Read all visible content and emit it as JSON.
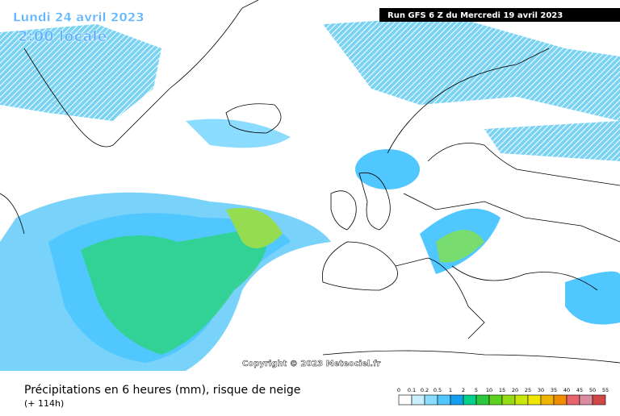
{
  "header": {
    "date": "Lundi 24 avril 2023",
    "time": "2:00 locale",
    "run": "Run GFS 6 Z du Mercredi 19 avril 2023"
  },
  "copyright": "Copyright © 2023 Meteociel.fr",
  "footer": {
    "title": "Précipitations en 6 heures (mm), risque de neige",
    "lead": "(+ 114h)"
  },
  "legend": {
    "labels": [
      0,
      0.1,
      0.2,
      0.5,
      1,
      2,
      5,
      10,
      15,
      20,
      25,
      30,
      35,
      40,
      45,
      50,
      55
    ],
    "colors": [
      "#ffffff",
      "#c8f0ff",
      "#8cdcff",
      "#50c8ff",
      "#14a0f0",
      "#00d28c",
      "#2dc83c",
      "#5ad21e",
      "#96dc14",
      "#c8e60a",
      "#f0e600",
      "#f0b400",
      "#f08c00",
      "#e6646e",
      "#dc8ca0",
      "#d24646"
    ]
  }
}
